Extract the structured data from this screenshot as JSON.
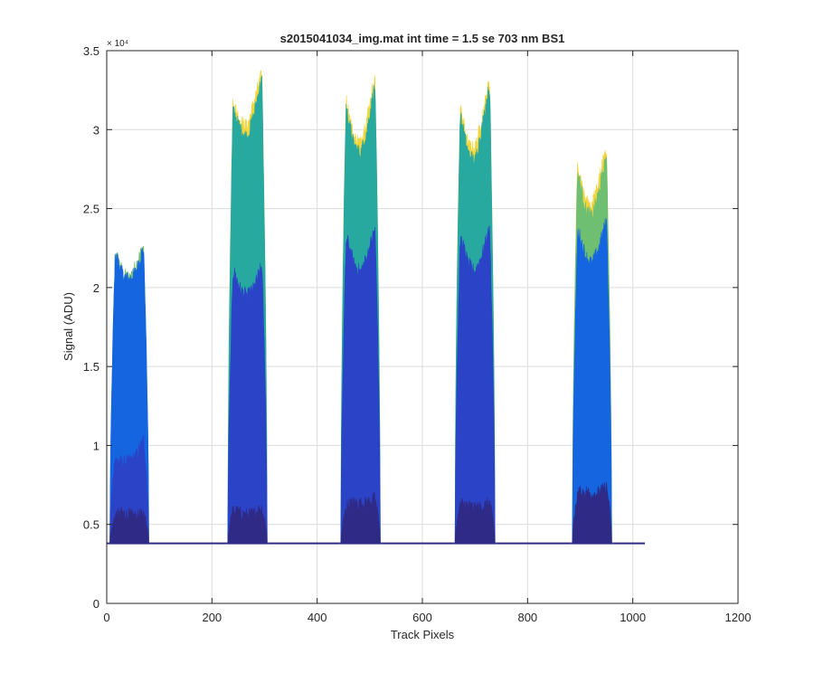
{
  "chart_data": {
    "type": "area",
    "title": "s2015041034_img.mat int time = 1.5 se  703 nm BS1",
    "xlabel": "Track Pixels",
    "ylabel": "Signal (ADU)",
    "xlim": [
      0,
      1200
    ],
    "ylim": [
      0,
      35000
    ],
    "xticks": [
      0,
      200,
      400,
      600,
      800,
      1000,
      1200
    ],
    "yticks": [
      0,
      0.5,
      1,
      1.5,
      2,
      2.5,
      3,
      3.5
    ],
    "y_exponent_label": "× 10⁴",
    "grid": true,
    "baseline": 3800,
    "x_extent": [
      0,
      1023
    ],
    "colors": [
      "#2f2a86",
      "#2b44c7",
      "#1565e0",
      "#27a9a0",
      "#6fbf73",
      "#f2d53c"
    ],
    "tracks": [
      {
        "x_start": 6,
        "x_end": 80,
        "layers": [
          {
            "shape": [
              5400,
              5600,
              5700,
              5600,
              5500,
              5600,
              6000
            ],
            "color_index": 0
          },
          {
            "shape": [
              9800,
              9100,
              8900,
              9000,
              9300,
              10200,
              11000
            ],
            "color_index": 1
          },
          {
            "shape": [
              21500,
              22000,
              20800,
              20500,
              21000,
              22300,
              23000
            ],
            "color_index": 2
          },
          {
            "shape": [
              21600,
              22100,
              20900,
              20600,
              21400,
              22500,
              23100
            ],
            "color_index": 4
          }
        ]
      },
      {
        "x_start": 230,
        "x_end": 305,
        "layers": [
          {
            "shape": [
              5800,
              5900,
              5700,
              5600,
              5700,
              6000,
              6100
            ],
            "color_index": 0
          },
          {
            "shape": [
              20500,
              21000,
              19800,
              19500,
              20000,
              21200,
              22000
            ],
            "color_index": 1
          },
          {
            "shape": [
              32500,
              31000,
              30000,
              29500,
              31000,
              33000,
              33500
            ],
            "color_index": 3
          },
          {
            "shape": [
              32800,
              31500,
              30500,
              30200,
              31800,
              33300,
              33700
            ],
            "color_index": 5
          }
        ]
      },
      {
        "x_start": 445,
        "x_end": 520,
        "layers": [
          {
            "shape": [
              5800,
              6200,
              6400,
              6300,
              6400,
              6600,
              6800
            ],
            "color_index": 0
          },
          {
            "shape": [
              22500,
              23000,
              21500,
              21000,
              22000,
              23500,
              24500
            ],
            "color_index": 1
          },
          {
            "shape": [
              33500,
              31000,
              29000,
              28500,
              30000,
              32500,
              33500
            ],
            "color_index": 3
          },
          {
            "shape": [
              33800,
              31500,
              29500,
              29200,
              30800,
              33000,
              33800
            ],
            "color_index": 5
          }
        ]
      },
      {
        "x_start": 662,
        "x_end": 738,
        "layers": [
          {
            "shape": [
              6100,
              6300,
              6200,
              6000,
              6100,
              6300,
              6600
            ],
            "color_index": 0
          },
          {
            "shape": [
              22800,
              23000,
              21500,
              21000,
              22000,
              23500,
              24000
            ],
            "color_index": 1
          },
          {
            "shape": [
              32800,
              30500,
              28500,
              28000,
              30000,
              32500,
              33000
            ],
            "color_index": 3
          },
          {
            "shape": [
              33000,
              31000,
              29000,
              28800,
              30600,
              32800,
              33200
            ],
            "color_index": 5
          }
        ]
      },
      {
        "x_start": 885,
        "x_end": 960,
        "layers": [
          {
            "shape": [
              6700,
              7000,
              7100,
              6900,
              7000,
              7300,
              7700
            ],
            "color_index": 0
          },
          {
            "shape": [
              23000,
              23500,
              22000,
              21500,
              22500,
              24000,
              25000
            ],
            "color_index": 2
          },
          {
            "shape": [
              28500,
              27000,
              25000,
              24500,
              26000,
              28000,
              28800
            ],
            "color_index": 4
          },
          {
            "shape": [
              28800,
              27500,
              25500,
              25200,
              26800,
              28500,
              29000
            ],
            "color_index": 5
          }
        ]
      }
    ]
  }
}
